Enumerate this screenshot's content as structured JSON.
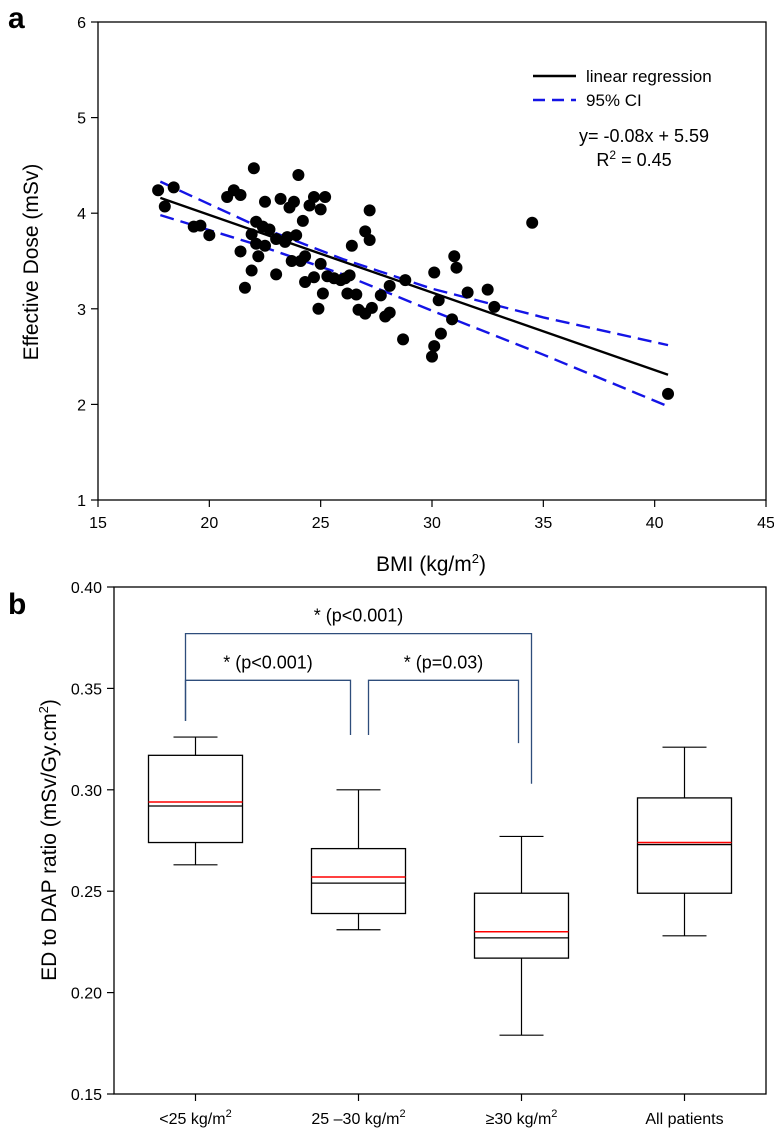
{
  "chart_data": [
    {
      "panel": "a",
      "type": "scatter",
      "title": "",
      "xlabel": "BMI (kg/m",
      "xlabel_sup": "2",
      "xlabel_suffix": ")",
      "ylabel": "Effective Dose (mSv)",
      "xlim": [
        15,
        45
      ],
      "ylim": [
        1,
        6
      ],
      "xticks": [
        15,
        20,
        25,
        30,
        35,
        40,
        45
      ],
      "yticks": [
        1,
        2,
        3,
        4,
        5,
        6
      ],
      "grid": false,
      "legend": {
        "placement": "top-right",
        "entries": [
          {
            "label": "linear regression",
            "style": "solid",
            "color": "#000000"
          },
          {
            "label": "95% CI",
            "style": "dashed",
            "color": "#1414e6"
          }
        ]
      },
      "equation": "y= -0.08x + 5.59",
      "r2_prefix": "R",
      "r2_sup": "2",
      "r2_suffix": " = 0.45",
      "regression": {
        "x": [
          17.8,
          40.6
        ],
        "y": [
          4.16,
          2.31
        ]
      },
      "ci_upper": {
        "x": [
          17.8,
          22,
          26,
          30,
          35,
          40.6
        ],
        "y": [
          4.33,
          3.88,
          3.52,
          3.21,
          2.91,
          2.62
        ]
      },
      "ci_lower": {
        "x": [
          17.8,
          22,
          26,
          30,
          35,
          40.6
        ],
        "y": [
          3.98,
          3.68,
          3.36,
          2.98,
          2.52,
          1.98
        ]
      },
      "points": [
        {
          "x": 17.7,
          "y": 4.24
        },
        {
          "x": 18.0,
          "y": 4.07
        },
        {
          "x": 18.4,
          "y": 4.27
        },
        {
          "x": 19.3,
          "y": 3.86
        },
        {
          "x": 19.6,
          "y": 3.87
        },
        {
          "x": 20.0,
          "y": 3.77
        },
        {
          "x": 20.8,
          "y": 4.17
        },
        {
          "x": 21.1,
          "y": 4.24
        },
        {
          "x": 21.4,
          "y": 4.19
        },
        {
          "x": 21.4,
          "y": 3.6
        },
        {
          "x": 21.6,
          "y": 3.22
        },
        {
          "x": 21.9,
          "y": 3.78
        },
        {
          "x": 21.9,
          "y": 3.4
        },
        {
          "x": 22.0,
          "y": 4.47
        },
        {
          "x": 22.1,
          "y": 3.91
        },
        {
          "x": 22.1,
          "y": 3.68
        },
        {
          "x": 22.2,
          "y": 3.55
        },
        {
          "x": 22.4,
          "y": 3.86
        },
        {
          "x": 22.5,
          "y": 4.12
        },
        {
          "x": 22.5,
          "y": 3.66
        },
        {
          "x": 22.7,
          "y": 3.83
        },
        {
          "x": 23.0,
          "y": 3.73
        },
        {
          "x": 23.0,
          "y": 3.36
        },
        {
          "x": 23.2,
          "y": 4.15
        },
        {
          "x": 23.4,
          "y": 3.7
        },
        {
          "x": 23.5,
          "y": 3.75
        },
        {
          "x": 23.6,
          "y": 4.06
        },
        {
          "x": 23.7,
          "y": 3.5
        },
        {
          "x": 23.8,
          "y": 4.12
        },
        {
          "x": 23.9,
          "y": 3.77
        },
        {
          "x": 24.0,
          "y": 4.4
        },
        {
          "x": 24.1,
          "y": 3.5
        },
        {
          "x": 24.2,
          "y": 3.92
        },
        {
          "x": 24.3,
          "y": 3.55
        },
        {
          "x": 24.3,
          "y": 3.28
        },
        {
          "x": 24.5,
          "y": 4.08
        },
        {
          "x": 24.7,
          "y": 4.17
        },
        {
          "x": 24.7,
          "y": 3.33
        },
        {
          "x": 24.9,
          "y": 3.0
        },
        {
          "x": 25.0,
          "y": 4.04
        },
        {
          "x": 25.0,
          "y": 3.47
        },
        {
          "x": 25.1,
          "y": 3.16
        },
        {
          "x": 25.2,
          "y": 4.17
        },
        {
          "x": 25.3,
          "y": 3.34
        },
        {
          "x": 25.6,
          "y": 3.32
        },
        {
          "x": 25.9,
          "y": 3.3
        },
        {
          "x": 26.1,
          "y": 3.32
        },
        {
          "x": 26.2,
          "y": 3.16
        },
        {
          "x": 26.3,
          "y": 3.35
        },
        {
          "x": 26.4,
          "y": 3.66
        },
        {
          "x": 26.6,
          "y": 3.15
        },
        {
          "x": 26.7,
          "y": 2.99
        },
        {
          "x": 27.0,
          "y": 3.81
        },
        {
          "x": 27.0,
          "y": 2.95
        },
        {
          "x": 27.2,
          "y": 4.03
        },
        {
          "x": 27.2,
          "y": 3.72
        },
        {
          "x": 27.3,
          "y": 3.01
        },
        {
          "x": 27.7,
          "y": 3.14
        },
        {
          "x": 27.9,
          "y": 2.92
        },
        {
          "x": 28.1,
          "y": 2.96
        },
        {
          "x": 28.1,
          "y": 3.24
        },
        {
          "x": 28.7,
          "y": 2.68
        },
        {
          "x": 28.8,
          "y": 3.3
        },
        {
          "x": 30.0,
          "y": 2.5
        },
        {
          "x": 30.1,
          "y": 3.38
        },
        {
          "x": 30.1,
          "y": 2.61
        },
        {
          "x": 30.3,
          "y": 3.09
        },
        {
          "x": 30.4,
          "y": 2.74
        },
        {
          "x": 30.9,
          "y": 2.89
        },
        {
          "x": 31.0,
          "y": 3.55
        },
        {
          "x": 31.1,
          "y": 3.43
        },
        {
          "x": 31.6,
          "y": 3.17
        },
        {
          "x": 32.5,
          "y": 3.2
        },
        {
          "x": 32.8,
          "y": 3.02
        },
        {
          "x": 34.5,
          "y": 3.9
        },
        {
          "x": 40.6,
          "y": 2.11
        }
      ]
    },
    {
      "panel": "b",
      "type": "box",
      "title": "",
      "xlabel": "",
      "ylabel": "ED to DAP ratio (mSv/Gy.cm",
      "ylabel_sup": "2",
      "ylabel_suffix": ")",
      "ylim": [
        0.15,
        0.4
      ],
      "yticks": [
        "0.15",
        "0.20",
        "0.25",
        "0.30",
        "0.35",
        "0.40"
      ],
      "yticks_values": [
        0.15,
        0.2,
        0.25,
        0.3,
        0.35,
        0.4
      ],
      "grid": false,
      "categories": [
        {
          "label": "<25 kg/m",
          "sup": "2"
        },
        {
          "label": "25 –30 kg/m",
          "sup": "2"
        },
        {
          "label": "≥30 kg/m",
          "sup": "2"
        },
        {
          "label": "All patients",
          "sup": ""
        }
      ],
      "boxes": [
        {
          "whisker_low": 0.263,
          "q1": 0.274,
          "median": 0.292,
          "mean": 0.294,
          "q3": 0.317,
          "whisker_high": 0.326
        },
        {
          "whisker_low": 0.231,
          "q1": 0.239,
          "median": 0.254,
          "mean": 0.257,
          "q3": 0.271,
          "whisker_high": 0.3
        },
        {
          "whisker_low": 0.179,
          "q1": 0.217,
          "median": 0.227,
          "mean": 0.23,
          "q3": 0.249,
          "whisker_high": 0.277
        },
        {
          "whisker_low": 0.228,
          "q1": 0.249,
          "median": 0.273,
          "mean": 0.274,
          "q3": 0.296,
          "whisker_high": 0.321
        }
      ],
      "mean_color": "#ff0000",
      "bracket_color": "#2e4d7b",
      "comparisons": [
        {
          "text": "* (p<0.001)",
          "from": 0,
          "to": 2,
          "y_top": 0.377,
          "y_left": 0.334,
          "y_right": 0.303
        },
        {
          "text": "* (p<0.001)",
          "from": 0,
          "to": 1,
          "y_top": 0.354,
          "y_left": 0.334,
          "y_right": 0.327
        },
        {
          "text": "* (p=0.03)",
          "from": 1,
          "to": 2,
          "y_top": 0.354,
          "y_left": 0.327,
          "y_right": 0.323
        }
      ]
    }
  ]
}
